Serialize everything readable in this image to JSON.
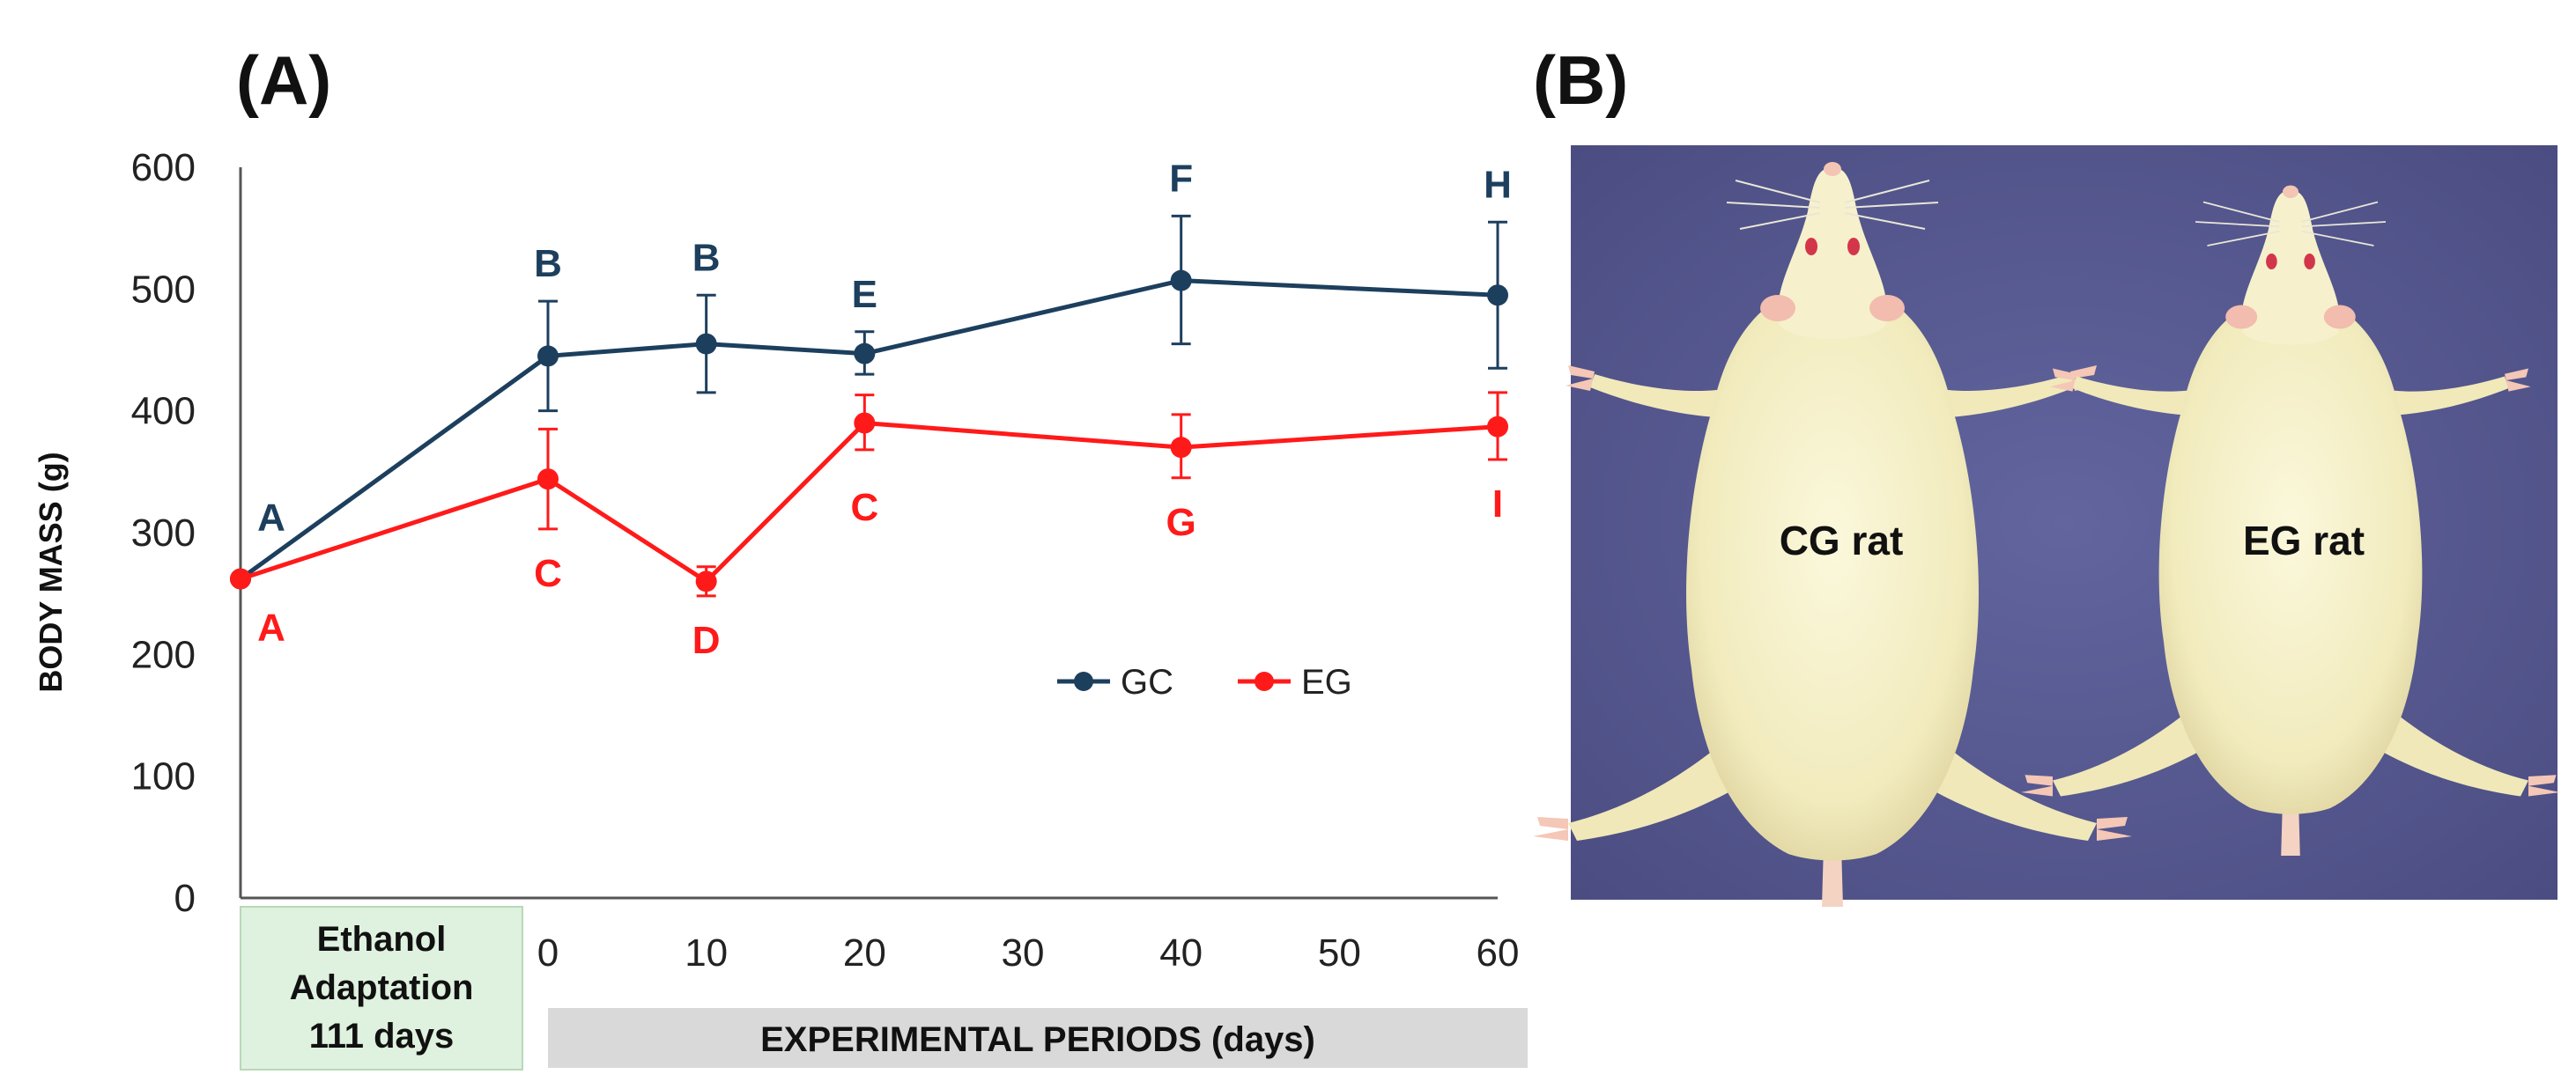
{
  "panels": {
    "a_label": "(A)",
    "b_label": "(B)"
  },
  "chart_data": {
    "type": "line",
    "title": "",
    "ylabel": "BODY MASS (g)",
    "xlabel": "EXPERIMENTAL PERIODS (days)",
    "ylim": [
      0,
      600
    ],
    "yticks": [
      "0",
      "100",
      "200",
      "300",
      "400",
      "500",
      "600"
    ],
    "xticks": [
      "0",
      "10",
      "20",
      "30",
      "40",
      "50",
      "60"
    ],
    "x": [
      "Adaptation",
      0,
      10,
      20,
      40,
      60
    ],
    "series": [
      {
        "name": "GC",
        "color": "#1d3f5e",
        "values": [
          262,
          445,
          455,
          447,
          507,
          495
        ],
        "error": [
          [
            262,
            262
          ],
          [
            400,
            490
          ],
          [
            415,
            495
          ],
          [
            430,
            465
          ],
          [
            455,
            560
          ],
          [
            435,
            555
          ]
        ],
        "letters": [
          "A",
          "B",
          "B",
          "E",
          "F",
          "H"
        ]
      },
      {
        "name": "EG",
        "color": "#ff1a1a",
        "values": [
          262,
          344,
          260,
          390,
          370,
          387
        ],
        "error": [
          [
            262,
            262
          ],
          [
            303,
            385
          ],
          [
            248,
            272
          ],
          [
            368,
            413
          ],
          [
            345,
            397
          ],
          [
            360,
            415
          ]
        ],
        "letters": [
          "A",
          "C",
          "D",
          "C",
          "G",
          "I"
        ]
      }
    ],
    "legend": [
      "GC",
      "EG"
    ],
    "adaptation_band": {
      "lines": [
        "Ethanol",
        "Adaptation",
        "111 days"
      ],
      "color": "#dff1df"
    },
    "period_band_color": "#d9d9d9"
  },
  "photo": {
    "cg_label": "CG rat",
    "eg_label": "EG rat",
    "background_color": "#5a5c94"
  }
}
